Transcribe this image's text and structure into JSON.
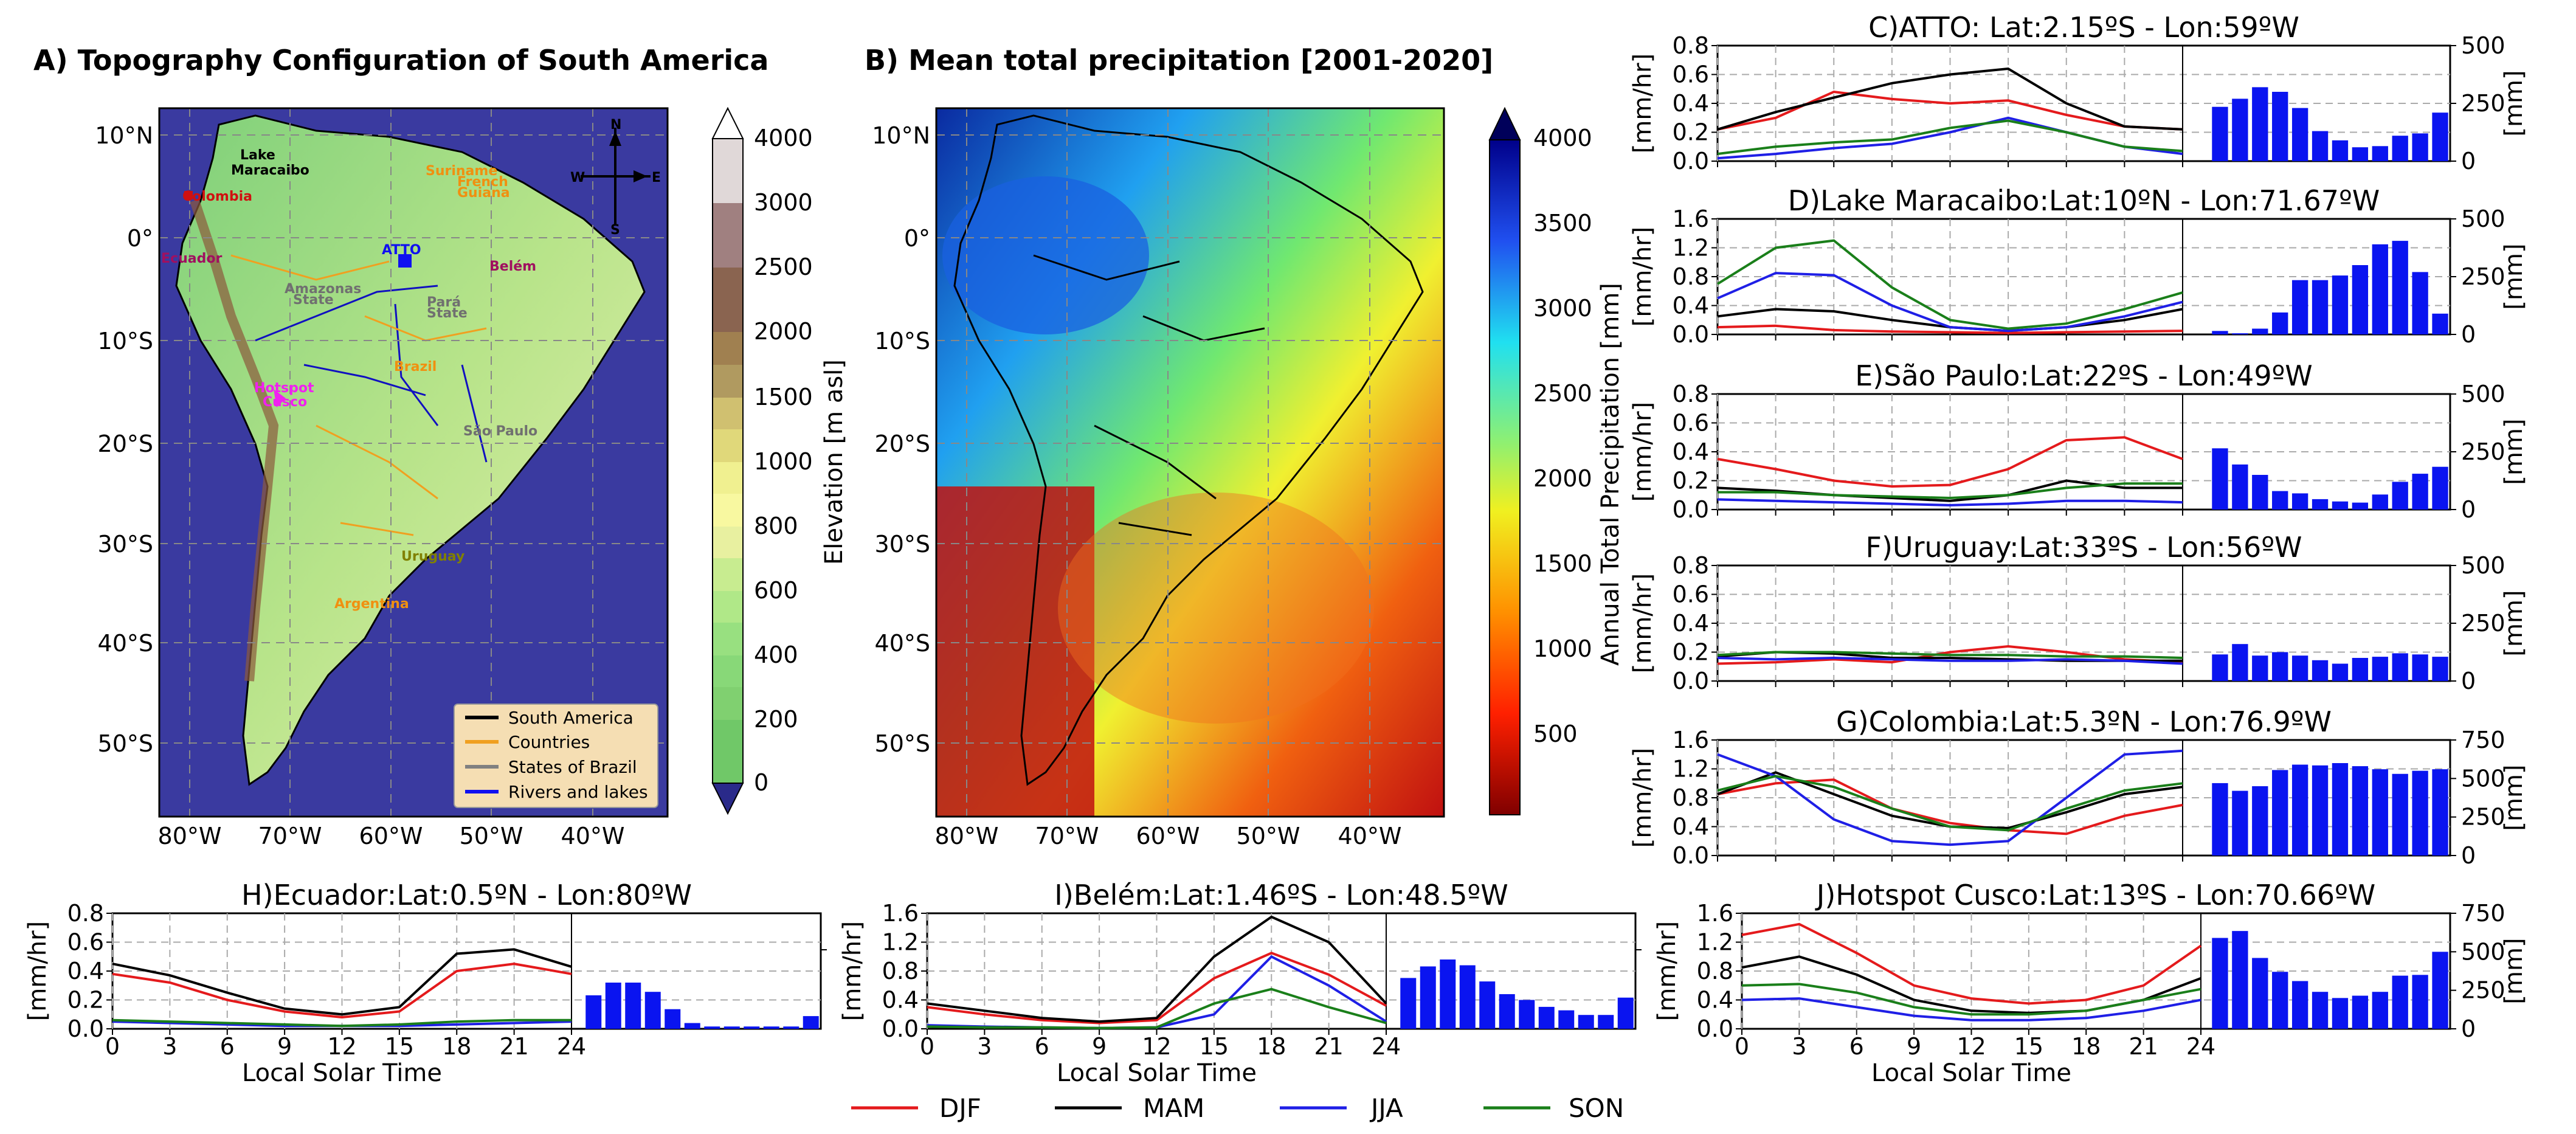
{
  "colors": {
    "DJF": "#e41a1c",
    "MAM": "#000000",
    "JJA": "#1f1fe6",
    "SON": "#1a7f1a",
    "bar": "#0a14f0"
  },
  "map_a": {
    "title": "A) Topography Configuration of South America",
    "lat_labels": [
      "10°N",
      "0°",
      "10°S",
      "20°S",
      "30°S",
      "40°S",
      "50°S"
    ],
    "lon_labels": [
      "80°W",
      "70°W",
      "60°W",
      "50°W",
      "40°W"
    ],
    "colorbar_label": "Elevation [m asl]",
    "colorbar_ticks": [
      "0",
      "200",
      "400",
      "600",
      "800",
      "1000",
      "1500",
      "2000",
      "2500",
      "3000",
      "4000"
    ],
    "legend": [
      "South America",
      "Countries",
      "States of Brazil",
      "Rivers and lakes"
    ],
    "compass": [
      "N",
      "S",
      "W",
      "E"
    ],
    "places": [
      "Lake",
      "Maracaibo",
      "Colombia",
      "Ecuador",
      "ATTO",
      "Belém",
      "Hotspot",
      "Cusco",
      "São Paulo",
      "Uruguay",
      "Suriname",
      "French",
      "Guiana",
      "Amazonas",
      "State",
      "Pará",
      "State",
      "Brazil",
      "Argentina"
    ]
  },
  "map_b": {
    "title": "B) Mean total precipitation [2001-2020]",
    "lat_labels": [
      "10°N",
      "0°",
      "10°S",
      "20°S",
      "30°S",
      "40°S",
      "50°S"
    ],
    "lon_labels": [
      "80°W",
      "70°W",
      "60°W",
      "50°W",
      "40°W"
    ],
    "colorbar_label": "Annual Total Precipitation [mm]",
    "colorbar_ticks": [
      "500",
      "1000",
      "1500",
      "2000",
      "2500",
      "3000",
      "3500",
      "4000"
    ]
  },
  "common": {
    "xlabel": "Local Solar Time",
    "ylabel_left": "[mm/hr]",
    "ylabel_right": "[mm]",
    "xticks": [
      "0",
      "3",
      "6",
      "9",
      "12",
      "15",
      "18",
      "21",
      "24"
    ],
    "legend": [
      "DJF",
      "MAM",
      "JJA",
      "SON"
    ]
  },
  "chart_data": [
    {
      "type": "line+bar",
      "title": "C)ATTO: Lat:2.15ºS - Lon:59ºW",
      "ylim": [
        0,
        0.8
      ],
      "yticks": [
        "0.0",
        "0.2",
        "0.4",
        "0.6",
        "0.8"
      ],
      "y2lim": [
        0,
        500
      ],
      "y2ticks": [
        "0",
        "250",
        "500"
      ],
      "series": [
        {
          "name": "DJF",
          "x": [
            0,
            3,
            6,
            9,
            12,
            15,
            18,
            21,
            24
          ],
          "values": [
            0.22,
            0.3,
            0.48,
            0.43,
            0.4,
            0.42,
            0.32,
            0.24,
            0.22
          ]
        },
        {
          "name": "MAM",
          "x": [
            0,
            3,
            6,
            9,
            12,
            15,
            18,
            21,
            24
          ],
          "values": [
            0.22,
            0.34,
            0.44,
            0.54,
            0.6,
            0.64,
            0.4,
            0.24,
            0.22
          ]
        },
        {
          "name": "JJA",
          "x": [
            0,
            3,
            6,
            9,
            12,
            15,
            18,
            21,
            24
          ],
          "values": [
            0.02,
            0.05,
            0.09,
            0.12,
            0.2,
            0.3,
            0.2,
            0.1,
            0.05
          ]
        },
        {
          "name": "SON",
          "x": [
            0,
            3,
            6,
            9,
            12,
            15,
            18,
            21,
            24
          ],
          "values": [
            0.05,
            0.1,
            0.13,
            0.15,
            0.23,
            0.28,
            0.2,
            0.1,
            0.07
          ]
        }
      ],
      "bars": [
        235,
        270,
        320,
        300,
        230,
        130,
        90,
        60,
        65,
        110,
        120,
        210
      ]
    },
    {
      "type": "line+bar",
      "title": "D)Lake Maracaibo:Lat:10ºN - Lon:71.67ºW",
      "ylim": [
        0,
        1.6
      ],
      "yticks": [
        "0.0",
        "0.4",
        "0.8",
        "1.2",
        "1.6"
      ],
      "y2lim": [
        0,
        500
      ],
      "y2ticks": [
        "0",
        "250",
        "500"
      ],
      "series": [
        {
          "name": "DJF",
          "x": [
            0,
            3,
            6,
            9,
            12,
            15,
            18,
            21,
            24
          ],
          "values": [
            0.1,
            0.12,
            0.06,
            0.04,
            0.03,
            0.02,
            0.03,
            0.04,
            0.05
          ]
        },
        {
          "name": "MAM",
          "x": [
            0,
            3,
            6,
            9,
            12,
            15,
            18,
            21,
            24
          ],
          "values": [
            0.25,
            0.35,
            0.32,
            0.2,
            0.1,
            0.05,
            0.1,
            0.2,
            0.35
          ]
        },
        {
          "name": "JJA",
          "x": [
            0,
            3,
            6,
            9,
            12,
            15,
            18,
            21,
            24
          ],
          "values": [
            0.5,
            0.85,
            0.82,
            0.4,
            0.1,
            0.05,
            0.1,
            0.25,
            0.45
          ]
        },
        {
          "name": "SON",
          "x": [
            0,
            3,
            6,
            9,
            12,
            15,
            18,
            21,
            24
          ],
          "values": [
            0.7,
            1.2,
            1.3,
            0.65,
            0.2,
            0.08,
            0.15,
            0.35,
            0.58
          ]
        }
      ],
      "bars": [
        15,
        5,
        25,
        95,
        235,
        235,
        255,
        300,
        390,
        405,
        270,
        90
      ]
    },
    {
      "type": "line+bar",
      "title": "E)São Paulo:Lat:22ºS - Lon:49ºW",
      "ylim": [
        0,
        0.8
      ],
      "yticks": [
        "0.0",
        "0.2",
        "0.4",
        "0.6",
        "0.8"
      ],
      "y2lim": [
        0,
        500
      ],
      "y2ticks": [
        "0",
        "250",
        "500"
      ],
      "series": [
        {
          "name": "DJF",
          "x": [
            0,
            3,
            6,
            9,
            12,
            15,
            18,
            21,
            24
          ],
          "values": [
            0.35,
            0.28,
            0.2,
            0.16,
            0.17,
            0.28,
            0.48,
            0.5,
            0.35
          ]
        },
        {
          "name": "MAM",
          "x": [
            0,
            3,
            6,
            9,
            12,
            15,
            18,
            21,
            24
          ],
          "values": [
            0.15,
            0.13,
            0.1,
            0.08,
            0.06,
            0.1,
            0.2,
            0.15,
            0.15
          ]
        },
        {
          "name": "JJA",
          "x": [
            0,
            3,
            6,
            9,
            12,
            15,
            18,
            21,
            24
          ],
          "values": [
            0.07,
            0.06,
            0.05,
            0.04,
            0.03,
            0.04,
            0.06,
            0.06,
            0.05
          ]
        },
        {
          "name": "SON",
          "x": [
            0,
            3,
            6,
            9,
            12,
            15,
            18,
            21,
            24
          ],
          "values": [
            0.12,
            0.12,
            0.1,
            0.09,
            0.08,
            0.1,
            0.15,
            0.18,
            0.18
          ]
        }
      ],
      "bars": [
        265,
        195,
        150,
        80,
        70,
        45,
        35,
        30,
        65,
        120,
        155,
        185
      ]
    },
    {
      "type": "line+bar",
      "title": "F)Uruguay:Lat:33ºS - Lon:56ºW",
      "ylim": [
        0,
        0.8
      ],
      "yticks": [
        "0.0",
        "0.2",
        "0.4",
        "0.6",
        "0.8"
      ],
      "y2lim": [
        0,
        500
      ],
      "y2ticks": [
        "0",
        "250",
        "500"
      ],
      "series": [
        {
          "name": "DJF",
          "x": [
            0,
            3,
            6,
            9,
            12,
            15,
            18,
            21,
            24
          ],
          "values": [
            0.12,
            0.13,
            0.15,
            0.13,
            0.2,
            0.24,
            0.2,
            0.15,
            0.13
          ]
        },
        {
          "name": "MAM",
          "x": [
            0,
            3,
            6,
            9,
            12,
            15,
            18,
            21,
            24
          ],
          "values": [
            0.17,
            0.2,
            0.19,
            0.16,
            0.16,
            0.15,
            0.14,
            0.14,
            0.14
          ]
        },
        {
          "name": "JJA",
          "x": [
            0,
            3,
            6,
            9,
            12,
            15,
            18,
            21,
            24
          ],
          "values": [
            0.16,
            0.15,
            0.16,
            0.15,
            0.14,
            0.14,
            0.15,
            0.14,
            0.12
          ]
        },
        {
          "name": "SON",
          "x": [
            0,
            3,
            6,
            9,
            12,
            15,
            18,
            21,
            24
          ],
          "values": [
            0.18,
            0.2,
            0.2,
            0.19,
            0.18,
            0.18,
            0.17,
            0.17,
            0.16
          ]
        }
      ],
      "bars": [
        115,
        160,
        110,
        125,
        110,
        90,
        75,
        100,
        105,
        120,
        115,
        105
      ]
    },
    {
      "type": "line+bar",
      "title": "G)Colombia:Lat:5.3ºN - Lon:76.9ºW",
      "ylim": [
        0,
        1.6
      ],
      "yticks": [
        "0.0",
        "0.4",
        "0.8",
        "1.2",
        "1.6"
      ],
      "y2lim": [
        0,
        750
      ],
      "y2ticks": [
        "0",
        "250",
        "500",
        "750"
      ],
      "series": [
        {
          "name": "DJF",
          "x": [
            0,
            3,
            6,
            9,
            12,
            15,
            18,
            21,
            24
          ],
          "values": [
            0.85,
            1.0,
            1.05,
            0.65,
            0.45,
            0.35,
            0.3,
            0.55,
            0.7
          ]
        },
        {
          "name": "MAM",
          "x": [
            0,
            3,
            6,
            9,
            12,
            15,
            18,
            21,
            24
          ],
          "values": [
            0.85,
            1.15,
            0.85,
            0.55,
            0.4,
            0.38,
            0.6,
            0.85,
            0.95
          ]
        },
        {
          "name": "JJA",
          "x": [
            0,
            3,
            6,
            9,
            12,
            15,
            18,
            21,
            24
          ],
          "values": [
            1.4,
            1.1,
            0.5,
            0.2,
            0.15,
            0.2,
            0.8,
            1.4,
            1.45
          ]
        },
        {
          "name": "SON",
          "x": [
            0,
            3,
            6,
            9,
            12,
            15,
            18,
            21,
            24
          ],
          "values": [
            0.9,
            1.1,
            0.95,
            0.65,
            0.4,
            0.35,
            0.65,
            0.9,
            1.0
          ]
        }
      ],
      "bars": [
        470,
        420,
        450,
        555,
        590,
        585,
        600,
        580,
        560,
        530,
        550,
        560
      ]
    },
    {
      "type": "line+bar",
      "title": "H)Ecuador:Lat:0.5ºN - Lon:80ºW",
      "ylim": [
        0,
        0.8
      ],
      "yticks": [
        "0.0",
        "0.2",
        "0.4",
        "0.6",
        "0.8"
      ],
      "y2lim": [
        0,
        500
      ],
      "y2ticks": [],
      "series": [
        {
          "name": "DJF",
          "x": [
            0,
            3,
            6,
            9,
            12,
            15,
            18,
            21,
            24
          ],
          "values": [
            0.38,
            0.32,
            0.2,
            0.12,
            0.08,
            0.12,
            0.4,
            0.45,
            0.38
          ]
        },
        {
          "name": "MAM",
          "x": [
            0,
            3,
            6,
            9,
            12,
            15,
            18,
            21,
            24
          ],
          "values": [
            0.45,
            0.37,
            0.25,
            0.14,
            0.1,
            0.15,
            0.52,
            0.55,
            0.43
          ]
        },
        {
          "name": "JJA",
          "x": [
            0,
            3,
            6,
            9,
            12,
            15,
            18,
            21,
            24
          ],
          "values": [
            0.05,
            0.04,
            0.03,
            0.02,
            0.02,
            0.02,
            0.03,
            0.04,
            0.05
          ]
        },
        {
          "name": "SON",
          "x": [
            0,
            3,
            6,
            9,
            12,
            15,
            18,
            21,
            24
          ],
          "values": [
            0.06,
            0.05,
            0.04,
            0.03,
            0.02,
            0.03,
            0.05,
            0.06,
            0.06
          ]
        }
      ],
      "bars": [
        145,
        200,
        200,
        160,
        85,
        25,
        10,
        10,
        10,
        10,
        10,
        55
      ]
    },
    {
      "type": "line+bar",
      "title": "I)Belém:Lat:1.46ºS - Lon:48.5ºW",
      "ylim": [
        0,
        1.6
      ],
      "yticks": [
        "0.0",
        "0.4",
        "0.8",
        "1.2",
        "1.6"
      ],
      "y2lim": [
        0,
        500
      ],
      "y2ticks": [],
      "series": [
        {
          "name": "DJF",
          "x": [
            0,
            3,
            6,
            9,
            12,
            15,
            18,
            21,
            24
          ],
          "values": [
            0.3,
            0.2,
            0.12,
            0.08,
            0.12,
            0.7,
            1.05,
            0.75,
            0.32
          ]
        },
        {
          "name": "MAM",
          "x": [
            0,
            3,
            6,
            9,
            12,
            15,
            18,
            21,
            24
          ],
          "values": [
            0.35,
            0.25,
            0.15,
            0.1,
            0.15,
            1.0,
            1.55,
            1.2,
            0.35
          ]
        },
        {
          "name": "JJA",
          "x": [
            0,
            3,
            6,
            9,
            12,
            15,
            18,
            21,
            24
          ],
          "values": [
            0.05,
            0.03,
            0.02,
            0.01,
            0.02,
            0.2,
            1.0,
            0.6,
            0.1
          ]
        },
        {
          "name": "SON",
          "x": [
            0,
            3,
            6,
            9,
            12,
            15,
            18,
            21,
            24
          ],
          "values": [
            0.03,
            0.02,
            0.02,
            0.01,
            0.02,
            0.35,
            0.55,
            0.3,
            0.08
          ]
        }
      ],
      "bars": [
        220,
        270,
        300,
        275,
        205,
        150,
        125,
        95,
        80,
        60,
        60,
        135
      ]
    },
    {
      "type": "line+bar",
      "title": "J)Hotspot Cusco:Lat:13ºS - Lon:70.66ºW",
      "ylim": [
        0,
        1.6
      ],
      "yticks": [
        "0.0",
        "0.4",
        "0.8",
        "1.2",
        "1.6"
      ],
      "y2lim": [
        0,
        750
      ],
      "y2ticks": [
        "0",
        "250",
        "500",
        "750"
      ],
      "series": [
        {
          "name": "DJF",
          "x": [
            0,
            3,
            6,
            9,
            12,
            15,
            18,
            21,
            24
          ],
          "values": [
            1.3,
            1.45,
            1.05,
            0.6,
            0.42,
            0.35,
            0.4,
            0.6,
            1.15
          ]
        },
        {
          "name": "MAM",
          "x": [
            0,
            3,
            6,
            9,
            12,
            15,
            18,
            21,
            24
          ],
          "values": [
            0.85,
            1.0,
            0.75,
            0.4,
            0.25,
            0.22,
            0.25,
            0.4,
            0.7
          ]
        },
        {
          "name": "JJA",
          "x": [
            0,
            3,
            6,
            9,
            12,
            15,
            18,
            21,
            24
          ],
          "values": [
            0.4,
            0.42,
            0.3,
            0.18,
            0.12,
            0.12,
            0.15,
            0.25,
            0.4
          ]
        },
        {
          "name": "SON",
          "x": [
            0,
            3,
            6,
            9,
            12,
            15,
            18,
            21,
            24
          ],
          "values": [
            0.6,
            0.62,
            0.5,
            0.3,
            0.2,
            0.2,
            0.25,
            0.4,
            0.55
          ]
        }
      ],
      "bars": [
        590,
        635,
        460,
        370,
        310,
        240,
        200,
        215,
        240,
        345,
        350,
        500
      ]
    }
  ]
}
